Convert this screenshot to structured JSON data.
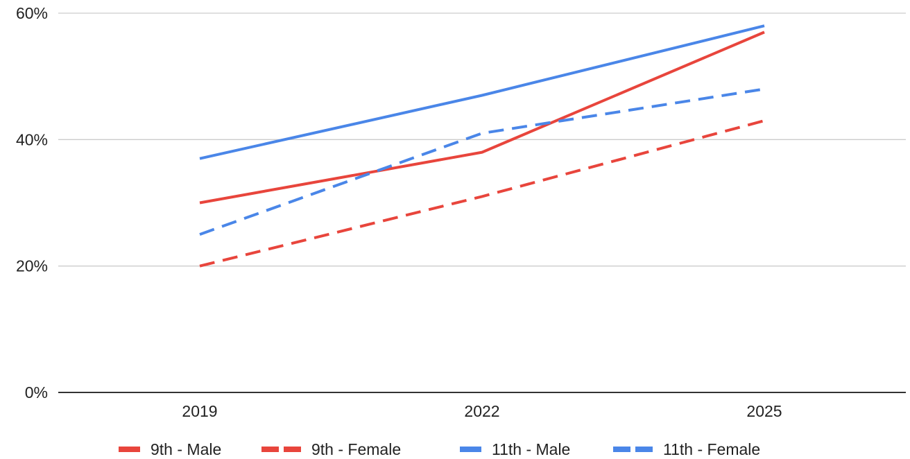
{
  "chart_data": {
    "type": "line",
    "x": [
      "2019",
      "2022",
      "2025"
    ],
    "y_ticks": [
      "0%",
      "20%",
      "40%",
      "60%"
    ],
    "ylim": [
      0,
      60
    ],
    "grid": true,
    "legend_position": "bottom",
    "series": [
      {
        "name": "9th - Male",
        "values": [
          30,
          38,
          57
        ],
        "color": "#e8453c",
        "dashed": false
      },
      {
        "name": "9th - Female",
        "values": [
          20,
          31,
          43
        ],
        "color": "#e8453c",
        "dashed": true
      },
      {
        "name": "11th - Male",
        "values": [
          37,
          47,
          58
        ],
        "color": "#4a86e8",
        "dashed": false
      },
      {
        "name": "11th - Female",
        "values": [
          25,
          41,
          48
        ],
        "color": "#4a86e8",
        "dashed": true
      }
    ]
  }
}
